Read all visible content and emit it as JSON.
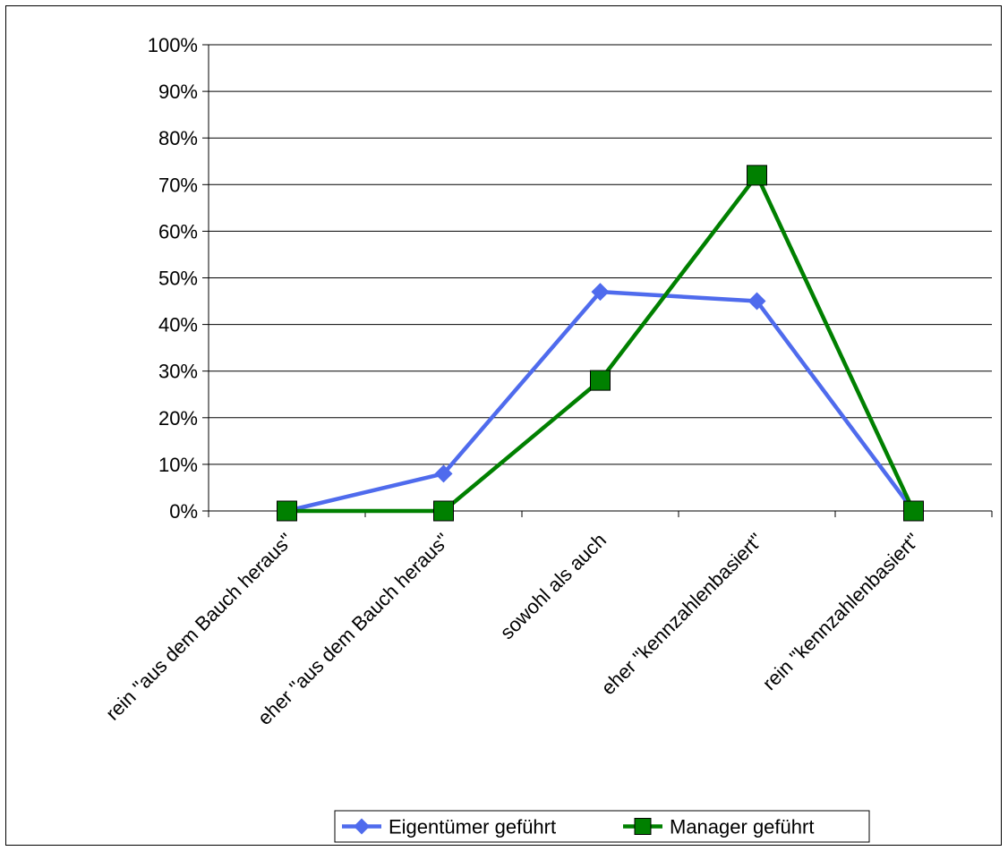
{
  "chart_data": {
    "type": "line",
    "title": "",
    "xlabel": "",
    "ylabel": "",
    "categories": [
      "rein \"aus dem Bauch heraus\"",
      "eher \"aus dem Bauch heraus\"",
      "sowohl als auch",
      "eher \"kennzahlenbasiert\"",
      "rein \"kennzahlenbasiert\""
    ],
    "y_ticks": [
      "0%",
      "10%",
      "20%",
      "30%",
      "40%",
      "50%",
      "60%",
      "70%",
      "80%",
      "90%",
      "100%"
    ],
    "ylim": [
      0,
      100
    ],
    "y_unit": "%",
    "grid": true,
    "legend_position": "bottom",
    "series": [
      {
        "name": "Eigentümer geführt",
        "values": [
          0,
          8,
          47,
          45,
          0
        ],
        "color": "#4F6BED",
        "marker": "diamond"
      },
      {
        "name": "Manager geführt",
        "values": [
          0,
          0,
          28,
          72,
          0
        ],
        "color": "#008000",
        "marker": "square"
      }
    ]
  }
}
